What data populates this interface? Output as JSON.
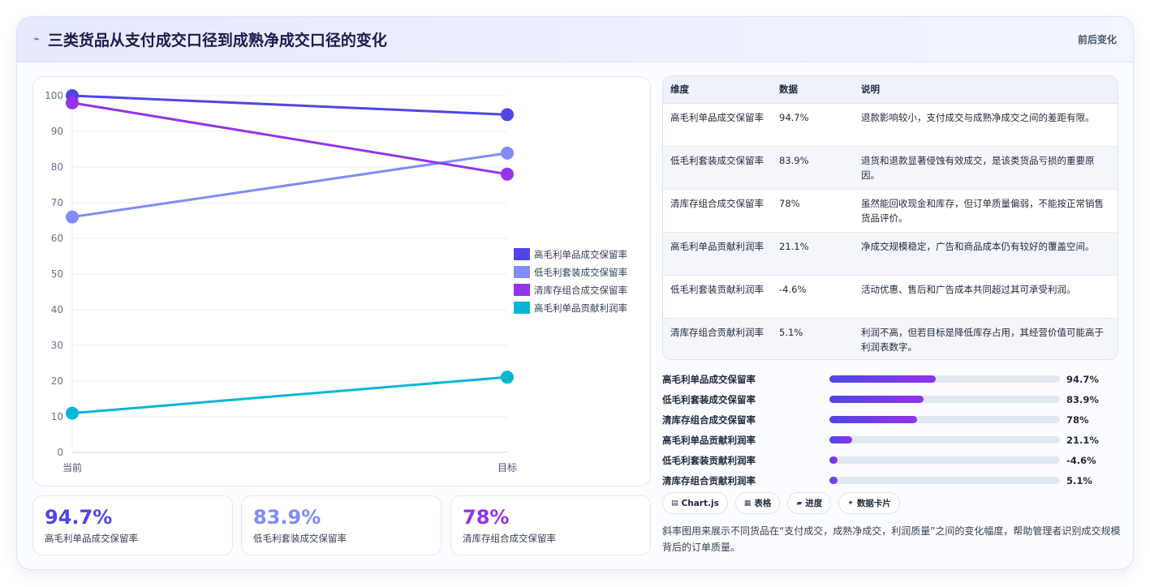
{
  "header": {
    "icon": "bolt-icon",
    "title": "三类货品从支付成交口径到成熟净成交口径的变化",
    "tag": "前后变化"
  },
  "chart_data": {
    "type": "line",
    "x": [
      "当前",
      "目标"
    ],
    "ylim": [
      0,
      100
    ],
    "yticks": [
      0,
      10,
      20,
      30,
      40,
      50,
      60,
      70,
      80,
      90,
      100
    ],
    "grid": true,
    "legend_position": "right",
    "series": [
      {
        "name": "高毛利单品成交保留率",
        "color": "#4f46e5",
        "values": [
          100,
          94.7
        ]
      },
      {
        "name": "低毛利套装成交保留率",
        "color": "#818cf8",
        "values": [
          66,
          83.9
        ]
      },
      {
        "name": "清库存组合成交保留率",
        "color": "#9333ea",
        "values": [
          98,
          78
        ]
      },
      {
        "name": "高毛利单品贡献利润率",
        "color": "#06b6d4",
        "values": [
          11,
          21.1
        ]
      }
    ]
  },
  "kpis": [
    {
      "value": "94.7%",
      "label": "高毛利单品成交保留率",
      "color": "#4f46e5"
    },
    {
      "value": "83.9%",
      "label": "低毛利套装成交保留率",
      "color": "#818cf8"
    },
    {
      "value": "78%",
      "label": "清库存组合成交保留率",
      "color": "#9333ea"
    }
  ],
  "table": {
    "headers": [
      "维度",
      "数据",
      "说明"
    ],
    "rows": [
      [
        "高毛利单品成交保留率",
        "94.7%",
        "退款影响较小，支付成交与成熟净成交之间的差距有限。"
      ],
      [
        "低毛利套装成交保留率",
        "83.9%",
        "退货和退款显著侵蚀有效成交，是该类货品亏损的重要原因。"
      ],
      [
        "清库存组合成交保留率",
        "78%",
        "虽然能回收现金和库存，但订单质量偏弱，不能按正常销售货品评价。"
      ],
      [
        "高毛利单品贡献利润率",
        "21.1%",
        "净成交规模稳定，广告和商品成本仍有较好的覆盖空间。"
      ],
      [
        "低毛利套装贡献利润率",
        "-4.6%",
        "活动优惠、售后和广告成本共同超过其可承受利润。"
      ],
      [
        "清库存组合贡献利润率",
        "5.1%",
        "利润不高，但若目标是降低库存占用，其经营价值可能高于利润表数字。"
      ]
    ]
  },
  "progress": [
    {
      "label": "高毛利单品成交保留率",
      "value": "94.7%",
      "fraction": 0.46
    },
    {
      "label": "低毛利套装成交保留率",
      "value": "83.9%",
      "fraction": 0.41
    },
    {
      "label": "清库存组合成交保留率",
      "value": "78%",
      "fraction": 0.38
    },
    {
      "label": "高毛利单品贡献利润率",
      "value": "21.1%",
      "fraction": 0.1
    },
    {
      "label": "低毛利套装贡献利润率",
      "value": "-4.6%",
      "fraction": 0.035
    },
    {
      "label": "清库存组合贡献利润率",
      "value": "5.1%",
      "fraction": 0.035
    }
  ],
  "chips": [
    {
      "icon": "chart-icon",
      "glyph": "▤",
      "label": "Chart.js"
    },
    {
      "icon": "table-icon",
      "glyph": "▦",
      "label": "表格"
    },
    {
      "icon": "progress-icon",
      "glyph": "▰",
      "label": "进度"
    },
    {
      "icon": "sparkle-icon",
      "glyph": "✦",
      "label": "数据卡片"
    }
  ],
  "description": "斜率图用来展示不同货品在“支付成交，成熟净成交，利润质量”之间的变化幅度，帮助管理者识别成交规模背后的订单质量。"
}
